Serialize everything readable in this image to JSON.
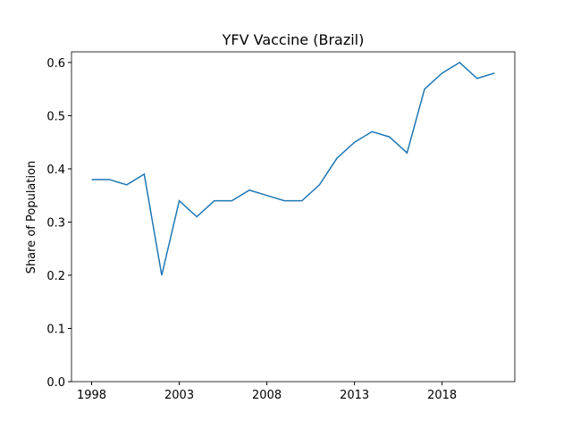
{
  "chart_data": {
    "type": "line",
    "title": "YFV Vaccine (Brazil)",
    "y_label": "Share of Population",
    "x": [
      1998,
      1999,
      2000,
      2001,
      2002,
      2003,
      2004,
      2005,
      2006,
      2007,
      2008,
      2009,
      2010,
      2011,
      2012,
      2013,
      2014,
      2015,
      2016,
      2017,
      2018,
      2019,
      2020,
      2021
    ],
    "series": [
      {
        "name": "Brazil",
        "color": "#1f77b4",
        "values": [
          0.38,
          0.38,
          0.37,
          0.39,
          0.2,
          0.34,
          0.31,
          0.34,
          0.34,
          0.36,
          0.35,
          0.34,
          0.34,
          0.37,
          0.42,
          0.45,
          0.47,
          0.46,
          0.43,
          0.55,
          0.58,
          0.6,
          0.57,
          0.58
        ]
      }
    ],
    "xlim": [
      1996.85,
      2022.15
    ],
    "xticks": [
      1998,
      2003,
      2008,
      2013,
      2018
    ],
    "ylim": [
      0,
      0.62
    ],
    "yticks": [
      {
        "value": 0,
        "label": "0.0"
      },
      0.1,
      0.2,
      0.3,
      0.4,
      0.5,
      0.6
    ]
  }
}
